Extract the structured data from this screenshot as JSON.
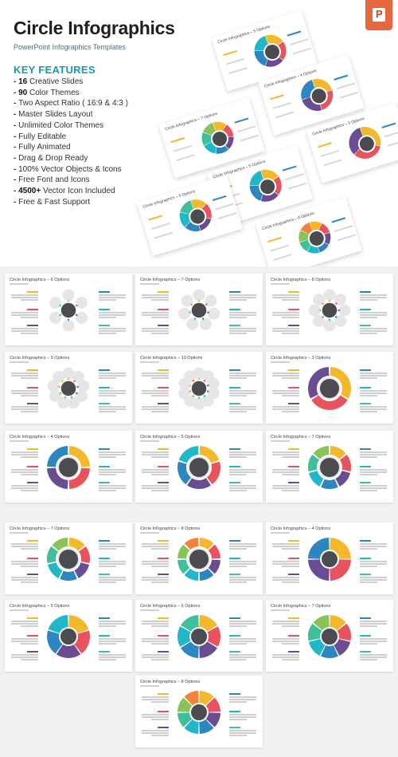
{
  "header": {
    "title": "Circle Infographics",
    "subtitle": "PowerPoint Infographics Templates",
    "badge_letter": "P"
  },
  "key_features": {
    "title": "KEY FEATURES",
    "items": [
      {
        "bold": "16",
        "text": " Creative Slides"
      },
      {
        "bold": "90",
        "text": " Color Themes"
      },
      {
        "bold": "",
        "text": "Two Aspect Ratio ( 16:9 & 4:3 )"
      },
      {
        "bold": "",
        "text": "Master Slides Layout"
      },
      {
        "bold": "",
        "text": "Unlimited Color Themes"
      },
      {
        "bold": "",
        "text": "Fully Editable"
      },
      {
        "bold": "",
        "text": "Fully Animated"
      },
      {
        "bold": "",
        "text": "Drag & Drop Ready"
      },
      {
        "bold": "",
        "text": "100% Vector Objects & Icons"
      },
      {
        "bold": "",
        "text": "Free Font and Icons"
      },
      {
        "bold": "4500+",
        "text": " Vector Icon Included"
      },
      {
        "bold": "",
        "text": "Free & Fast Support"
      }
    ]
  },
  "palette": [
    "#f4b82c",
    "#e9535e",
    "#6a4c93",
    "#2e86c1",
    "#21b6c8",
    "#3fbf9c",
    "#8ac25a",
    "#f0843c"
  ],
  "hero_slides": [
    {
      "title": "Circle Infographics – 5 Options",
      "segments": 5
    },
    {
      "title": "Circle Infographics – 7 Options",
      "segments": 7
    },
    {
      "title": "Circle Infographics – 4 Options",
      "segments": 4
    },
    {
      "title": "Circle Infographics – 5 Options",
      "segments": 5
    },
    {
      "title": "Circle Infographics – 3 Options",
      "segments": 3
    },
    {
      "title": "Circle Infographics – 6 Options",
      "segments": 6
    },
    {
      "title": "Circle Infographics – 8 Options",
      "segments": 8
    }
  ],
  "slides": [
    {
      "title": "Circle Infographics – 6 Options",
      "style": "flower",
      "segments": 6
    },
    {
      "title": "Circle Infographics – 7 Options",
      "style": "flower",
      "segments": 7
    },
    {
      "title": "Circle Infographics – 8 Options",
      "style": "flower",
      "segments": 8
    },
    {
      "title": "Circle Infographics – 9 Options",
      "style": "flower",
      "segments": 9
    },
    {
      "title": "Circle Infographics – 10 Options",
      "style": "flower",
      "segments": 10
    },
    {
      "title": "Circle Infographics – 3 Options",
      "style": "ring",
      "segments": 3
    },
    {
      "title": "Circle Infographics – 4 Options",
      "style": "ring",
      "segments": 4
    },
    {
      "title": "Circle Infographics – 5 Options",
      "style": "ring",
      "segments": 5
    },
    {
      "title": "Circle Infographics – 7 Options",
      "style": "ring",
      "segments": 7
    },
    {
      "title": "Circle Infographics – 7 Options",
      "style": "ring",
      "segments": 7
    },
    {
      "title": "Circle Infographics – 8 Options",
      "style": "ring",
      "segments": 8
    },
    {
      "title": "Circle Infographics – 4 Options",
      "style": "pie",
      "segments": 4
    },
    {
      "title": "Circle Infographics – 5 Options",
      "style": "pie",
      "segments": 5
    },
    {
      "title": "Circle Infographics – 6 Options",
      "style": "pie",
      "segments": 6
    },
    {
      "title": "Circle Infographics – 7 Options",
      "style": "pie",
      "segments": 7
    },
    {
      "title": "Circle Infographics – 8 Options",
      "style": "pie",
      "segments": 8
    }
  ]
}
